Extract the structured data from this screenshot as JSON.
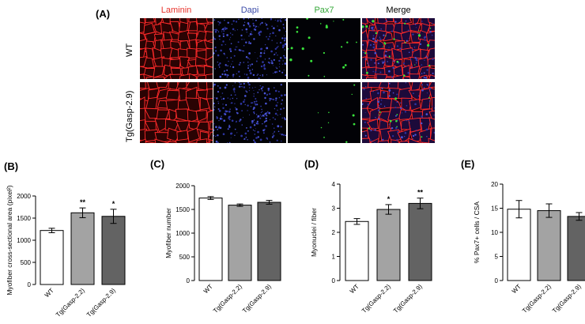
{
  "panel_a": {
    "letter": "(A)",
    "columns": [
      "Laminin",
      "Dapi",
      "Pax7",
      "Merge"
    ],
    "column_colors": [
      "#e8332c",
      "#3b4ba8",
      "#35a838",
      "#000000"
    ],
    "rows": [
      "WT",
      "Tg(Gasp-2.9)"
    ]
  },
  "chart_data": [
    {
      "letter": "(B)",
      "type": "bar",
      "title": "",
      "xlabel": "",
      "ylabel": "Myofiber cross-sectional area (pixel²)",
      "categories": [
        "WT",
        "Tg(Gasp-2.2)",
        "Tg(Gasp-2.9)"
      ],
      "values": [
        1220,
        1620,
        1540
      ],
      "errors": [
        50,
        110,
        160
      ],
      "significance": [
        "",
        "**",
        "*"
      ],
      "bar_colors": [
        "#ffffff",
        "#a3a3a3",
        "#636363"
      ],
      "ylim": [
        0,
        2000
      ],
      "yticks": [
        0,
        500,
        1000,
        1500,
        2000
      ],
      "ytick_labels": [
        "0",
        "500",
        "1000",
        "1500",
        "2000"
      ]
    },
    {
      "letter": "(C)",
      "type": "bar",
      "title": "",
      "xlabel": "",
      "ylabel": "Myofiber number",
      "categories": [
        "WT",
        "Tg(Gasp-2.2)",
        "Tg(Gasp-2.9)"
      ],
      "values": [
        1740,
        1590,
        1650
      ],
      "errors": [
        30,
        25,
        40
      ],
      "significance": [
        "",
        "",
        ""
      ],
      "bar_colors": [
        "#ffffff",
        "#a3a3a3",
        "#636363"
      ],
      "ylim": [
        0,
        2000
      ],
      "yticks": [
        0,
        500,
        1000,
        1500,
        2000
      ],
      "ytick_labels": [
        "0",
        "500",
        "1000",
        "1500",
        "2000"
      ]
    },
    {
      "letter": "(D)",
      "type": "bar",
      "title": "",
      "xlabel": "",
      "ylabel": "Myonuclei / fiber",
      "categories": [
        "WT",
        "Tg(Gasp-2.2)",
        "Tg(Gasp-2.9)"
      ],
      "values": [
        2.45,
        2.95,
        3.2
      ],
      "errors": [
        0.12,
        0.2,
        0.22
      ],
      "significance": [
        "",
        "*",
        "**"
      ],
      "bar_colors": [
        "#ffffff",
        "#a3a3a3",
        "#636363"
      ],
      "ylim": [
        0,
        4
      ],
      "yticks": [
        0,
        1,
        2,
        3,
        4
      ],
      "ytick_labels": [
        "0",
        "1",
        "2",
        "3",
        "4"
      ]
    },
    {
      "letter": "(E)",
      "type": "bar",
      "title": "",
      "xlabel": "",
      "ylabel": "% Pax7+ cells / CSA",
      "categories": [
        "WT",
        "Tg(Gasp-2.2)",
        "Tg(Gasp-2.9)"
      ],
      "values": [
        14.8,
        14.5,
        13.3
      ],
      "errors": [
        1.8,
        1.4,
        0.8
      ],
      "significance": [
        "",
        "",
        ""
      ],
      "bar_colors": [
        "#ffffff",
        "#a3a3a3",
        "#636363"
      ],
      "ylim": [
        0,
        20
      ],
      "yticks": [
        0,
        5,
        10,
        15,
        20
      ],
      "ytick_labels": [
        "0",
        "5",
        "10",
        "15",
        "20"
      ]
    }
  ]
}
